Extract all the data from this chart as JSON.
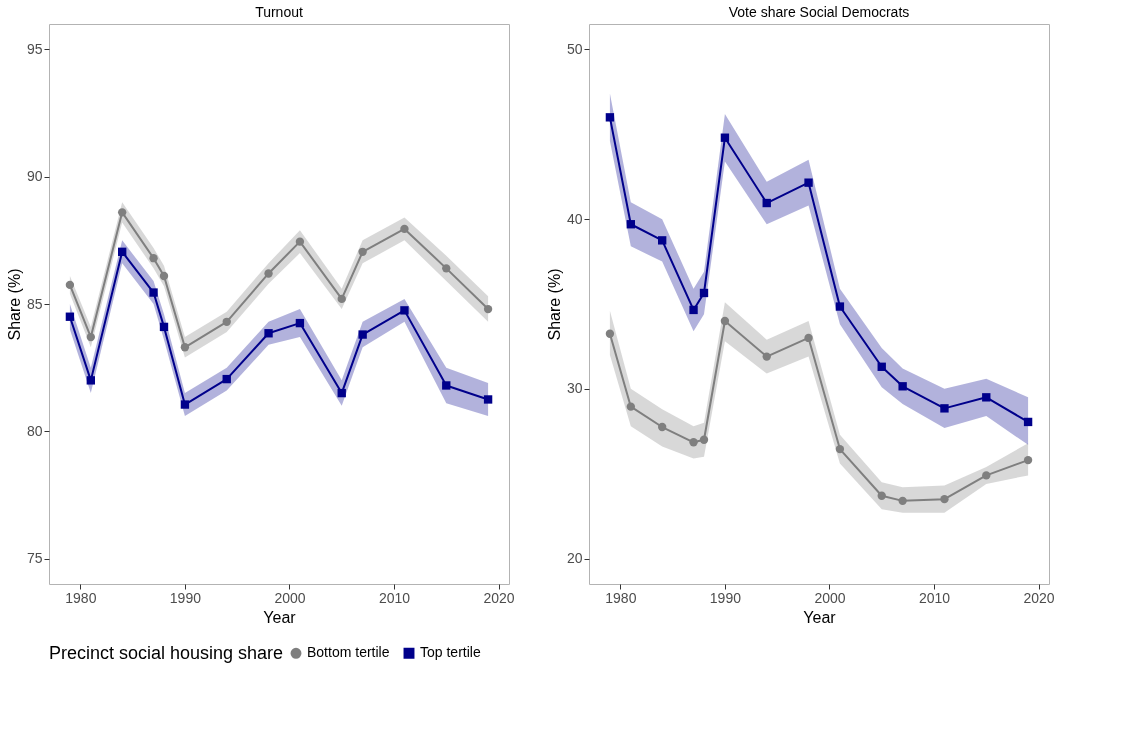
{
  "chart_data": [
    {
      "type": "line",
      "title": "Turnout",
      "xlabel": "Year",
      "ylabel": "Share (%)",
      "legend_title": "Precinct social housing share",
      "legend": "bottom",
      "grid": false,
      "line_style": "solid",
      "x": [
        1979,
        1981,
        1984,
        1987,
        1988,
        1990,
        1994,
        1998,
        2001,
        2005,
        2007,
        2011,
        2015,
        2019
      ],
      "xlim": [
        1977,
        2021
      ],
      "xticks": [
        1980,
        1990,
        2000,
        2010,
        2020
      ],
      "ylim": [
        74,
        96
      ],
      "yticks": [
        75,
        80,
        85,
        90,
        95
      ],
      "series": [
        {
          "name": "Bottom tertile",
          "color": "#7f7f7f",
          "marker": "circle",
          "values": [
            85.75,
            83.7,
            88.6,
            86.8,
            86.1,
            83.3,
            84.3,
            86.2,
            87.45,
            85.2,
            87.05,
            87.95,
            86.4,
            84.8
          ],
          "lower": [
            85.4,
            83.3,
            88.2,
            86.4,
            85.7,
            82.9,
            83.9,
            85.8,
            87.0,
            84.8,
            86.6,
            87.5,
            85.9,
            84.3
          ],
          "upper": [
            86.1,
            84.1,
            89.0,
            87.2,
            86.5,
            83.7,
            84.7,
            86.6,
            87.9,
            85.6,
            87.5,
            88.4,
            86.9,
            85.3
          ]
        },
        {
          "name": "Top tertile",
          "color": "#00008b",
          "marker": "square",
          "values": [
            84.5,
            82.0,
            87.05,
            85.45,
            84.1,
            81.05,
            82.05,
            83.85,
            84.25,
            81.5,
            83.8,
            84.75,
            81.8,
            81.25
          ],
          "lower": [
            84.0,
            81.5,
            86.6,
            85.0,
            83.6,
            80.6,
            81.6,
            83.4,
            83.7,
            81.0,
            83.3,
            84.3,
            81.1,
            80.6
          ],
          "upper": [
            85.0,
            82.5,
            87.5,
            85.9,
            84.6,
            81.5,
            82.5,
            84.3,
            84.8,
            82.0,
            84.3,
            85.2,
            82.5,
            81.9
          ]
        }
      ]
    },
    {
      "type": "line",
      "title": "Vote share Social Democrats",
      "xlabel": "Year",
      "ylabel": "Share (%)",
      "grid": false,
      "line_style": "solid",
      "x": [
        1979,
        1981,
        1984,
        1987,
        1988,
        1990,
        1994,
        1998,
        2001,
        2005,
        2007,
        2011,
        2015,
        2019
      ],
      "xlim": [
        1977,
        2021
      ],
      "xticks": [
        1980,
        1990,
        2000,
        2010,
        2020
      ],
      "ylim": [
        18.5,
        51.5
      ],
      "yticks": [
        20,
        30,
        40,
        50
      ],
      "series": [
        {
          "name": "Bottom tertile",
          "color": "#7f7f7f",
          "marker": "circle",
          "values": [
            33.25,
            28.95,
            27.75,
            26.85,
            27.0,
            34.0,
            31.9,
            33.0,
            26.45,
            23.7,
            23.4,
            23.5,
            24.9,
            25.8
          ],
          "lower": [
            32.0,
            27.8,
            26.6,
            25.9,
            26.0,
            32.8,
            30.9,
            31.9,
            25.6,
            22.9,
            22.7,
            22.7,
            24.4,
            24.9
          ],
          "upper": [
            34.6,
            30.0,
            28.8,
            27.8,
            28.0,
            35.1,
            32.9,
            34.0,
            27.3,
            24.5,
            24.2,
            24.3,
            25.4,
            26.8
          ]
        },
        {
          "name": "Top tertile",
          "color": "#00008b",
          "marker": "square",
          "values": [
            46.0,
            39.7,
            38.75,
            34.65,
            35.65,
            44.8,
            40.95,
            42.15,
            34.85,
            31.3,
            30.15,
            28.85,
            29.5,
            28.05
          ],
          "lower": [
            44.6,
            38.4,
            37.5,
            33.4,
            34.4,
            43.4,
            39.7,
            40.8,
            33.8,
            30.1,
            29.1,
            27.7,
            28.4,
            26.7
          ],
          "upper": [
            47.4,
            41.0,
            40.0,
            35.9,
            36.9,
            46.2,
            42.2,
            43.5,
            35.9,
            32.4,
            31.2,
            30.0,
            30.6,
            29.5
          ]
        }
      ]
    }
  ]
}
